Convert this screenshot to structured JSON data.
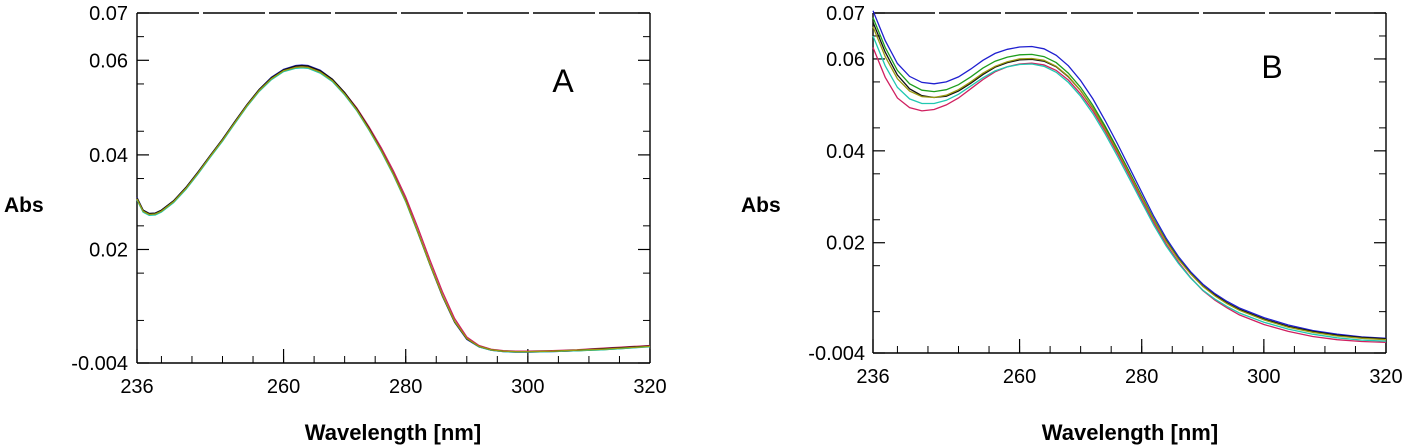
{
  "chart_data": [
    {
      "type": "line",
      "panel_label": "A",
      "xlabel": "Wavelength [nm]",
      "ylabel": "Abs",
      "xlim": [
        236,
        320
      ],
      "ylim": [
        -0.004,
        0.07
      ],
      "xticks": [
        236,
        260,
        280,
        300,
        320
      ],
      "yticks": [
        -0.004,
        0.02,
        0.04,
        0.06,
        0.07
      ],
      "xtick_labels": [
        "236",
        "260",
        "280",
        "300",
        "320"
      ],
      "ytick_labels": [
        "-0.004",
        "0.02",
        "0.04",
        "0.06",
        "0.07"
      ],
      "grid": false,
      "legend": "none",
      "x": [
        236,
        237,
        238,
        239,
        240,
        242,
        244,
        246,
        248,
        250,
        252,
        254,
        256,
        258,
        260,
        262,
        263,
        264,
        266,
        268,
        270,
        272,
        274,
        276,
        278,
        280,
        282,
        284,
        286,
        288,
        290,
        292,
        294,
        296,
        298,
        300,
        304,
        308,
        312,
        316,
        320
      ],
      "series": [
        {
          "color": "#1f1fd0",
          "values": [
            0.031,
            0.0283,
            0.0276,
            0.0277,
            0.0283,
            0.0303,
            0.0331,
            0.0364,
            0.0399,
            0.0433,
            0.047,
            0.0506,
            0.0538,
            0.0564,
            0.0581,
            0.0589,
            0.059,
            0.0589,
            0.0579,
            0.056,
            0.0532,
            0.0497,
            0.0456,
            0.041,
            0.0359,
            0.0303,
            0.0236,
            0.0167,
            0.0101,
            0.0046,
            0.001,
            -0.0006,
            -0.0013,
            -0.0016,
            -0.0017,
            -0.0017,
            -0.0016,
            -0.0014,
            -0.0011,
            -0.0008,
            -0.0004
          ]
        },
        {
          "color": "#1e9e1e",
          "values": [
            0.0306,
            0.028,
            0.0273,
            0.0274,
            0.028,
            0.03,
            0.0328,
            0.0361,
            0.0396,
            0.043,
            0.0467,
            0.0503,
            0.0535,
            0.056,
            0.0577,
            0.0584,
            0.0585,
            0.0584,
            0.0574,
            0.0556,
            0.0528,
            0.0494,
            0.0453,
            0.0408,
            0.0358,
            0.0302,
            0.0236,
            0.0168,
            0.0103,
            0.0048,
            0.0012,
            -0.0005,
            -0.0012,
            -0.0015,
            -0.0016,
            -0.0016,
            -0.0015,
            -0.0014,
            -0.0012,
            -0.0009,
            -0.0005
          ]
        },
        {
          "color": "#d02060",
          "values": [
            0.0308,
            0.0282,
            0.0275,
            0.0276,
            0.0282,
            0.0302,
            0.033,
            0.0363,
            0.0398,
            0.0432,
            0.0469,
            0.0505,
            0.0537,
            0.0562,
            0.0579,
            0.0586,
            0.0587,
            0.0586,
            0.0577,
            0.0559,
            0.0532,
            0.0499,
            0.0459,
            0.0415,
            0.0366,
            0.0311,
            0.0246,
            0.0177,
            0.0111,
            0.0054,
            0.0015,
            -0.0003,
            -0.0011,
            -0.0014,
            -0.0015,
            -0.0015,
            -0.0014,
            -0.0012,
            -0.0009,
            -0.0006,
            -0.0003
          ]
        },
        {
          "color": "#20c8b0",
          "values": [
            0.0305,
            0.0279,
            0.0272,
            0.0273,
            0.0279,
            0.0299,
            0.0327,
            0.036,
            0.0395,
            0.0429,
            0.0466,
            0.0502,
            0.0534,
            0.0559,
            0.0576,
            0.0583,
            0.0584,
            0.0583,
            0.0573,
            0.0555,
            0.0527,
            0.0493,
            0.0452,
            0.0407,
            0.0357,
            0.0301,
            0.0235,
            0.0167,
            0.0102,
            0.0047,
            0.0011,
            -0.0006,
            -0.0013,
            -0.0016,
            -0.0017,
            -0.0017,
            -0.0016,
            -0.0014,
            -0.0012,
            -0.0009,
            -0.0006
          ]
        },
        {
          "color": "#111111",
          "values": [
            0.0309,
            0.0283,
            0.0276,
            0.0277,
            0.0283,
            0.0303,
            0.0331,
            0.0364,
            0.0399,
            0.0433,
            0.047,
            0.0506,
            0.0538,
            0.0563,
            0.058,
            0.0588,
            0.0589,
            0.0588,
            0.0578,
            0.056,
            0.0532,
            0.0497,
            0.0456,
            0.041,
            0.036,
            0.0304,
            0.0237,
            0.0168,
            0.0102,
            0.0047,
            0.0011,
            -0.0005,
            -0.0012,
            -0.0015,
            -0.0016,
            -0.0016,
            -0.0015,
            -0.0013,
            -0.001,
            -0.0007,
            -0.0004
          ]
        },
        {
          "color": "#9a9a10",
          "values": [
            0.0307,
            0.0281,
            0.0274,
            0.0275,
            0.0281,
            0.0301,
            0.0329,
            0.0362,
            0.0397,
            0.0431,
            0.0468,
            0.0504,
            0.0536,
            0.0561,
            0.0578,
            0.0585,
            0.0586,
            0.0585,
            0.0575,
            0.0557,
            0.0529,
            0.0495,
            0.0454,
            0.0409,
            0.0359,
            0.0303,
            0.0237,
            0.0168,
            0.0103,
            0.0048,
            0.0012,
            -0.0005,
            -0.0012,
            -0.0015,
            -0.0016,
            -0.0016,
            -0.0015,
            -0.0013,
            -0.0011,
            -0.0008,
            -0.0005
          ]
        }
      ]
    },
    {
      "type": "line",
      "panel_label": "B",
      "xlabel": "Wavelength [nm]",
      "ylabel": "Abs",
      "xlim": [
        236,
        320
      ],
      "ylim": [
        -0.004,
        0.07
      ],
      "xticks": [
        236,
        260,
        280,
        300,
        320
      ],
      "yticks": [
        -0.004,
        0.02,
        0.04,
        0.06,
        0.07
      ],
      "xtick_labels": [
        "236",
        "260",
        "280",
        "300",
        "320"
      ],
      "ytick_labels": [
        "-0.004",
        "0.02",
        "0.04",
        "0.06",
        "0.07"
      ],
      "grid": false,
      "legend": "none",
      "x": [
        236,
        238,
        240,
        242,
        244,
        246,
        248,
        250,
        252,
        254,
        256,
        258,
        260,
        262,
        264,
        266,
        268,
        270,
        272,
        274,
        276,
        278,
        280,
        282,
        284,
        286,
        288,
        290,
        292,
        294,
        296,
        300,
        304,
        308,
        312,
        316,
        320
      ],
      "series": [
        {
          "color": "#1f1fd0",
          "values": [
            0.0705,
            0.064,
            0.059,
            0.0562,
            0.0549,
            0.0546,
            0.055,
            0.0561,
            0.0578,
            0.0597,
            0.0612,
            0.0621,
            0.0626,
            0.0627,
            0.0622,
            0.0608,
            0.0585,
            0.0553,
            0.0513,
            0.0466,
            0.0416,
            0.0363,
            0.031,
            0.0257,
            0.021,
            0.017,
            0.0137,
            0.011,
            0.0089,
            0.0072,
            0.0058,
            0.0037,
            0.0021,
            0.0009,
            0.0001,
            -0.0005,
            -0.0008
          ]
        },
        {
          "color": "#1e9e1e",
          "values": [
            0.069,
            0.0625,
            0.0575,
            0.0546,
            0.0532,
            0.0529,
            0.0533,
            0.0544,
            0.0561,
            0.058,
            0.0595,
            0.0604,
            0.0609,
            0.061,
            0.0605,
            0.0592,
            0.0569,
            0.0538,
            0.0499,
            0.0454,
            0.0405,
            0.0354,
            0.0302,
            0.0251,
            0.0205,
            0.0166,
            0.0133,
            0.0106,
            0.0085,
            0.0068,
            0.0054,
            0.0033,
            0.0017,
            0.0006,
            -0.0002,
            -0.0007,
            -0.001
          ]
        },
        {
          "color": "#d02060",
          "values": [
            0.0625,
            0.056,
            0.0515,
            0.0494,
            0.0487,
            0.049,
            0.05,
            0.0515,
            0.0535,
            0.0555,
            0.0572,
            0.0583,
            0.0589,
            0.0591,
            0.0587,
            0.0575,
            0.0554,
            0.0524,
            0.0487,
            0.0443,
            0.0395,
            0.0345,
            0.0293,
            0.0243,
            0.0197,
            0.0158,
            0.0124,
            0.0096,
            0.0075,
            0.0058,
            0.0043,
            0.0022,
            0.0007,
            -0.0004,
            -0.0011,
            -0.0015,
            -0.0017
          ]
        },
        {
          "color": "#20c8b0",
          "values": [
            0.065,
            0.0585,
            0.0538,
            0.0513,
            0.0503,
            0.0503,
            0.051,
            0.0523,
            0.0541,
            0.0559,
            0.0574,
            0.0583,
            0.0588,
            0.0589,
            0.0584,
            0.0571,
            0.0549,
            0.0519,
            0.0481,
            0.0437,
            0.0389,
            0.0339,
            0.0288,
            0.0238,
            0.0193,
            0.0155,
            0.0123,
            0.0097,
            0.0077,
            0.0061,
            0.0047,
            0.0027,
            0.0012,
            0.0001,
            -0.0007,
            -0.0012,
            -0.0014
          ]
        },
        {
          "color": "#111111",
          "values": [
            0.068,
            0.0615,
            0.0565,
            0.0535,
            0.052,
            0.0516,
            0.0519,
            0.053,
            0.0547,
            0.0566,
            0.0582,
            0.0592,
            0.0598,
            0.0599,
            0.0595,
            0.0583,
            0.0561,
            0.0531,
            0.0493,
            0.0449,
            0.0401,
            0.0351,
            0.03,
            0.0249,
            0.0204,
            0.0165,
            0.0133,
            0.0106,
            0.0086,
            0.0069,
            0.0055,
            0.0034,
            0.0018,
            0.0007,
            -0.0001,
            -0.0006,
            -0.0009
          ]
        },
        {
          "color": "#9a9a10",
          "values": [
            0.067,
            0.0605,
            0.0557,
            0.053,
            0.0518,
            0.0516,
            0.0521,
            0.0533,
            0.055,
            0.0569,
            0.0584,
            0.0594,
            0.06,
            0.0601,
            0.0597,
            0.0584,
            0.0562,
            0.0531,
            0.0493,
            0.0448,
            0.04,
            0.035,
            0.0299,
            0.0249,
            0.0203,
            0.0164,
            0.0132,
            0.0105,
            0.0084,
            0.0067,
            0.0053,
            0.0032,
            0.0016,
            0.0005,
            -0.0003,
            -0.0008,
            -0.0011
          ]
        }
      ]
    }
  ]
}
